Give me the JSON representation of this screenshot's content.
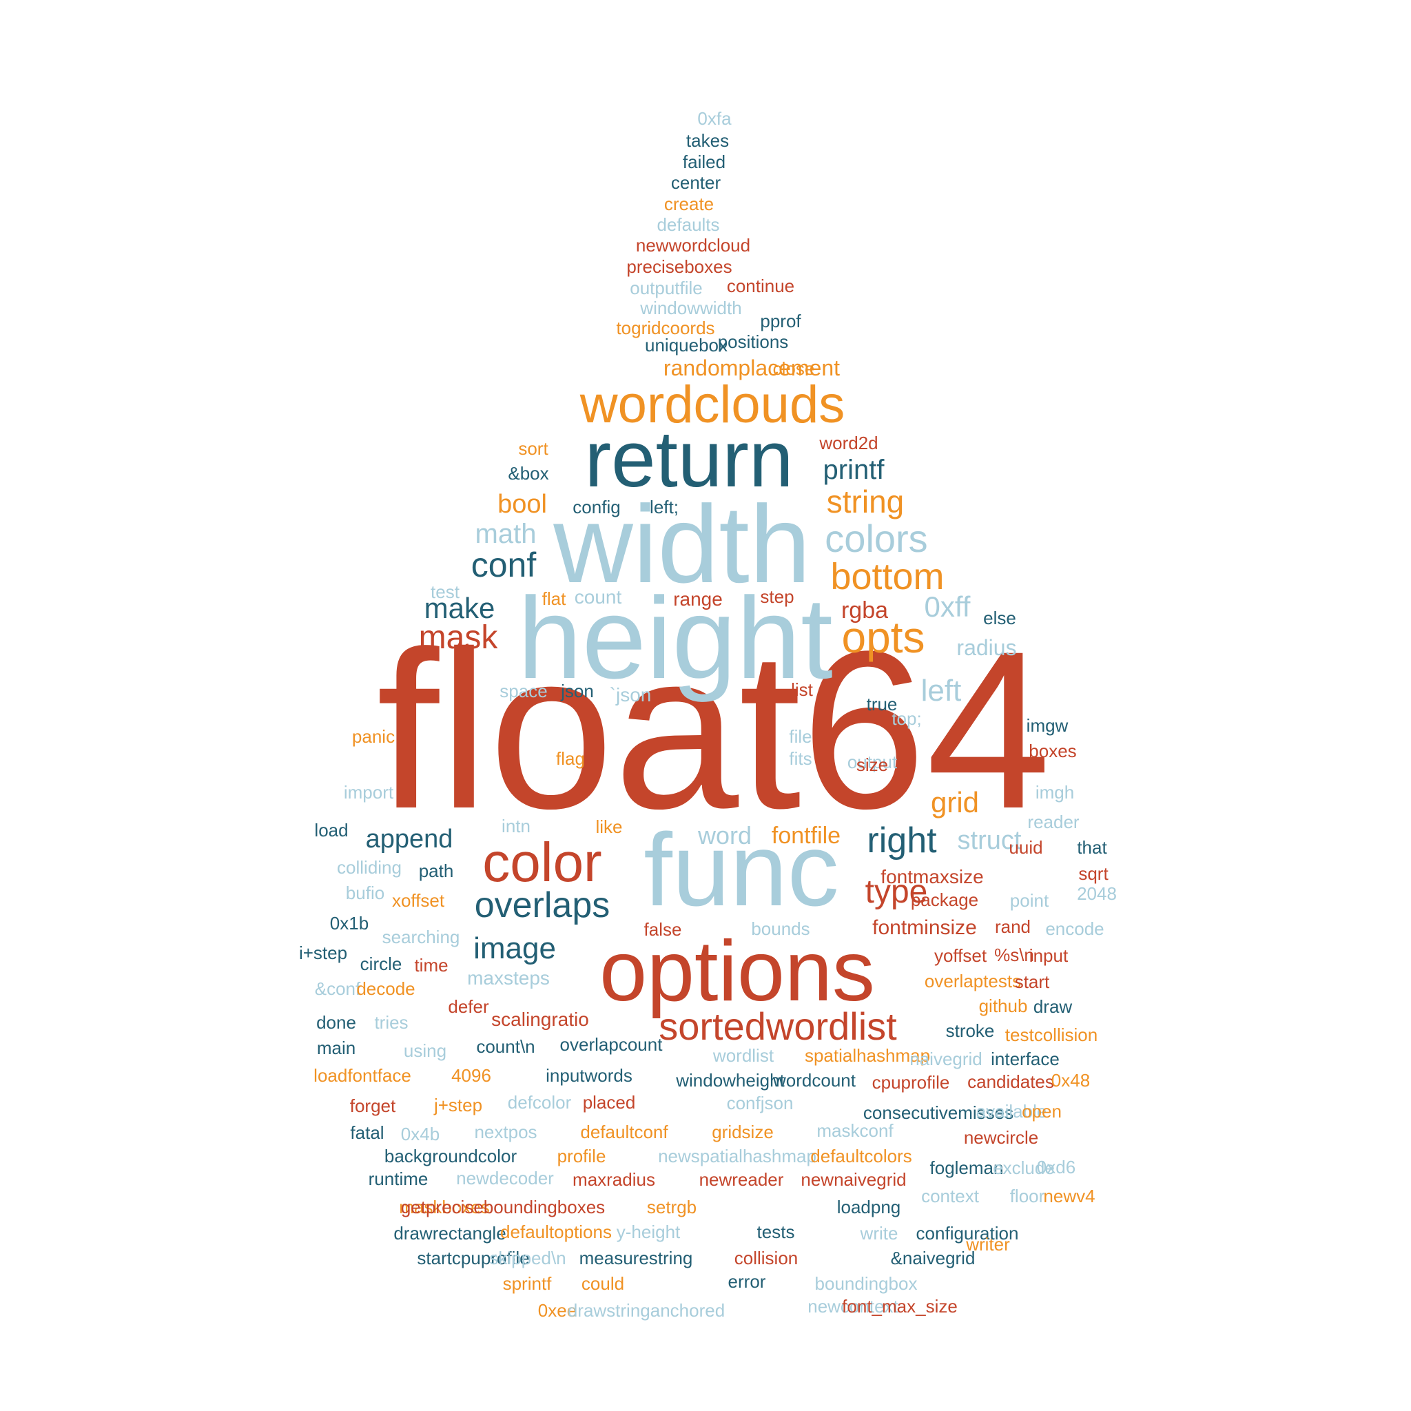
{
  "palette": {
    "red": "#c4452b",
    "orange": "#f09224",
    "dark_teal": "#235f74",
    "light_blue": "#a8cddb"
  },
  "words": [
    {
      "text": "float64",
      "color": "red"
    },
    {
      "text": "height",
      "color": "light_blue"
    },
    {
      "text": "width",
      "color": "light_blue"
    },
    {
      "text": "func",
      "color": "light_blue"
    },
    {
      "text": "return",
      "color": "dark_teal"
    },
    {
      "text": "options",
      "color": "red"
    },
    {
      "text": "wordclouds",
      "color": "orange"
    },
    {
      "text": "color",
      "color": "red"
    },
    {
      "text": "opts",
      "color": "orange"
    },
    {
      "text": "sortedwordlist",
      "color": "red"
    },
    {
      "text": "overlaps",
      "color": "dark_teal"
    },
    {
      "text": "colors",
      "color": "light_blue"
    },
    {
      "text": "bottom",
      "color": "orange"
    },
    {
      "text": "right",
      "color": "dark_teal"
    },
    {
      "text": "conf",
      "color": "dark_teal"
    },
    {
      "text": "mask",
      "color": "red"
    },
    {
      "text": "string",
      "color": "orange"
    },
    {
      "text": "make",
      "color": "dark_teal"
    },
    {
      "text": "image",
      "color": "dark_teal"
    },
    {
      "text": "type",
      "color": "red"
    },
    {
      "text": "math",
      "color": "light_blue"
    },
    {
      "text": "left",
      "color": "light_blue"
    },
    {
      "text": "0xff",
      "color": "light_blue"
    },
    {
      "text": "printf",
      "color": "dark_teal"
    },
    {
      "text": "bool",
      "color": "orange"
    },
    {
      "text": "append",
      "color": "dark_teal"
    },
    {
      "text": "struct",
      "color": "light_blue"
    },
    {
      "text": "grid",
      "color": "orange"
    },
    {
      "text": "rgba",
      "color": "red"
    },
    {
      "text": "word",
      "color": "light_blue"
    },
    {
      "text": "fontfile",
      "color": "orange"
    },
    {
      "text": "fontminsize",
      "color": "red"
    },
    {
      "text": "randomplacement",
      "color": "orange"
    },
    {
      "text": "radius",
      "color": "light_blue"
    },
    {
      "text": "scalingratio",
      "color": "red"
    },
    {
      "text": "fontmaxsize",
      "color": "red"
    },
    {
      "text": "maxsteps",
      "color": "light_blue"
    },
    {
      "text": "`json",
      "color": "light_blue"
    },
    {
      "text": "count",
      "color": "light_blue"
    },
    {
      "text": "range",
      "color": "red"
    },
    {
      "text": "0xfa",
      "color": "light_blue"
    },
    {
      "text": "takes",
      "color": "dark_teal"
    },
    {
      "text": "failed",
      "color": "dark_teal"
    },
    {
      "text": "center",
      "color": "dark_teal"
    },
    {
      "text": "create",
      "color": "orange"
    },
    {
      "text": "defaults",
      "color": "light_blue"
    },
    {
      "text": "newwordcloud",
      "color": "red"
    },
    {
      "text": "preciseboxes",
      "color": "red"
    },
    {
      "text": "outputfile",
      "color": "light_blue"
    },
    {
      "text": "continue",
      "color": "red"
    },
    {
      "text": "windowwidth",
      "color": "light_blue"
    },
    {
      "text": "togridcoords",
      "color": "orange"
    },
    {
      "text": "pprof",
      "color": "dark_teal"
    },
    {
      "text": "uniquebox",
      "color": "dark_teal"
    },
    {
      "text": "positions",
      "color": "dark_teal"
    },
    {
      "text": "close",
      "color": "orange"
    },
    {
      "text": "sort",
      "color": "orange"
    },
    {
      "text": "word2d",
      "color": "red"
    },
    {
      "text": "&box",
      "color": "dark_teal"
    },
    {
      "text": "config",
      "color": "dark_teal"
    },
    {
      "text": "left;",
      "color": "dark_teal"
    },
    {
      "text": "test",
      "color": "light_blue"
    },
    {
      "text": "flat",
      "color": "orange"
    },
    {
      "text": "step",
      "color": "red"
    },
    {
      "text": "else",
      "color": "dark_teal"
    },
    {
      "text": "space",
      "color": "light_blue"
    },
    {
      "text": "json",
      "color": "dark_teal"
    },
    {
      "text": "list",
      "color": "red"
    },
    {
      "text": "true",
      "color": "dark_teal"
    },
    {
      "text": "top;",
      "color": "light_blue"
    },
    {
      "text": "panic",
      "color": "orange"
    },
    {
      "text": "file",
      "color": "light_blue"
    },
    {
      "text": "imgw",
      "color": "dark_teal"
    },
    {
      "text": "output",
      "color": "light_blue"
    },
    {
      "text": "flag",
      "color": "orange"
    },
    {
      "text": "fits",
      "color": "light_blue"
    },
    {
      "text": "size",
      "color": "red"
    },
    {
      "text": "boxes",
      "color": "red"
    },
    {
      "text": "import",
      "color": "light_blue"
    },
    {
      "text": "imgh",
      "color": "light_blue"
    },
    {
      "text": "load",
      "color": "dark_teal"
    },
    {
      "text": "intn",
      "color": "light_blue"
    },
    {
      "text": "like",
      "color": "orange"
    },
    {
      "text": "reader",
      "color": "light_blue"
    },
    {
      "text": "colliding",
      "color": "light_blue"
    },
    {
      "text": "path",
      "color": "dark_teal"
    },
    {
      "text": "uuid",
      "color": "red"
    },
    {
      "text": "that",
      "color": "dark_teal"
    },
    {
      "text": "bufio",
      "color": "light_blue"
    },
    {
      "text": "xoffset",
      "color": "orange"
    },
    {
      "text": "sqrt",
      "color": "red"
    },
    {
      "text": "package",
      "color": "red"
    },
    {
      "text": "point",
      "color": "light_blue"
    },
    {
      "text": "2048",
      "color": "light_blue"
    },
    {
      "text": "0x1b",
      "color": "dark_teal"
    },
    {
      "text": "searching",
      "color": "light_blue"
    },
    {
      "text": "false",
      "color": "red"
    },
    {
      "text": "bounds",
      "color": "light_blue"
    },
    {
      "text": "rand",
      "color": "red"
    },
    {
      "text": "encode",
      "color": "light_blue"
    },
    {
      "text": "i+step",
      "color": "dark_teal"
    },
    {
      "text": "circle",
      "color": "dark_teal"
    },
    {
      "text": "time",
      "color": "red"
    },
    {
      "text": "yoffset",
      "color": "red"
    },
    {
      "text": "%s\\n",
      "color": "red"
    },
    {
      "text": "input",
      "color": "red"
    },
    {
      "text": "&conf",
      "color": "light_blue"
    },
    {
      "text": "decode",
      "color": "orange"
    },
    {
      "text": "overlaptests",
      "color": "orange"
    },
    {
      "text": "start",
      "color": "red"
    },
    {
      "text": "defer",
      "color": "red"
    },
    {
      "text": "github",
      "color": "orange"
    },
    {
      "text": "draw",
      "color": "dark_teal"
    },
    {
      "text": "done",
      "color": "dark_teal"
    },
    {
      "text": "tries",
      "color": "light_blue"
    },
    {
      "text": "stroke",
      "color": "dark_teal"
    },
    {
      "text": "testcollision",
      "color": "orange"
    },
    {
      "text": "main",
      "color": "dark_teal"
    },
    {
      "text": "using",
      "color": "light_blue"
    },
    {
      "text": "count\\n",
      "color": "dark_teal"
    },
    {
      "text": "overlapcount",
      "color": "dark_teal"
    },
    {
      "text": "wordlist",
      "color": "light_blue"
    },
    {
      "text": "spatialhashmap",
      "color": "orange"
    },
    {
      "text": "naivegrid",
      "color": "light_blue"
    },
    {
      "text": "interface",
      "color": "dark_teal"
    },
    {
      "text": "loadfontface",
      "color": "orange"
    },
    {
      "text": "4096",
      "color": "orange"
    },
    {
      "text": "inputwords",
      "color": "dark_teal"
    },
    {
      "text": "windowheight",
      "color": "dark_teal"
    },
    {
      "text": "wordcount",
      "color": "dark_teal"
    },
    {
      "text": "cpuprofile",
      "color": "red"
    },
    {
      "text": "candidates",
      "color": "red"
    },
    {
      "text": "0x48",
      "color": "orange"
    },
    {
      "text": "forget",
      "color": "red"
    },
    {
      "text": "j+step",
      "color": "orange"
    },
    {
      "text": "defcolor",
      "color": "light_blue"
    },
    {
      "text": "placed",
      "color": "red"
    },
    {
      "text": "confjson",
      "color": "light_blue"
    },
    {
      "text": "consecutivemisses",
      "color": "dark_teal"
    },
    {
      "text": "available",
      "color": "light_blue"
    },
    {
      "text": "open",
      "color": "orange"
    },
    {
      "text": "fatal",
      "color": "dark_teal"
    },
    {
      "text": "0x4b",
      "color": "light_blue"
    },
    {
      "text": "nextpos",
      "color": "light_blue"
    },
    {
      "text": "defaultconf",
      "color": "orange"
    },
    {
      "text": "gridsize",
      "color": "orange"
    },
    {
      "text": "maskconf",
      "color": "light_blue"
    },
    {
      "text": "newcircle",
      "color": "red"
    },
    {
      "text": "backgroundcolor",
      "color": "dark_teal"
    },
    {
      "text": "profile",
      "color": "orange"
    },
    {
      "text": "newspatialhashmap",
      "color": "light_blue"
    },
    {
      "text": "defaultcolors",
      "color": "orange"
    },
    {
      "text": "fogleman",
      "color": "dark_teal"
    },
    {
      "text": "exclude",
      "color": "light_blue"
    },
    {
      "text": "0xd6",
      "color": "light_blue"
    },
    {
      "text": "runtime",
      "color": "dark_teal"
    },
    {
      "text": "newdecoder",
      "color": "light_blue"
    },
    {
      "text": "maxradius",
      "color": "red"
    },
    {
      "text": "newreader",
      "color": "red"
    },
    {
      "text": "newnaivegrid",
      "color": "red"
    },
    {
      "text": "context",
      "color": "light_blue"
    },
    {
      "text": "floor",
      "color": "light_blue"
    },
    {
      "text": "newv4",
      "color": "orange"
    },
    {
      "text": "maskboxes",
      "color": "orange"
    },
    {
      "text": "getpreciseboundingboxes",
      "color": "red"
    },
    {
      "text": "setrgb",
      "color": "orange"
    },
    {
      "text": "loadpng",
      "color": "dark_teal"
    },
    {
      "text": "configuration",
      "color": "dark_teal"
    },
    {
      "text": "drawrectangle",
      "color": "dark_teal"
    },
    {
      "text": "defaultoptions",
      "color": "orange"
    },
    {
      "text": "y-height",
      "color": "light_blue"
    },
    {
      "text": "tests",
      "color": "dark_teal"
    },
    {
      "text": "write",
      "color": "light_blue"
    },
    {
      "text": "writer",
      "color": "orange"
    },
    {
      "text": "startcpuprofile",
      "color": "dark_teal"
    },
    {
      "text": "skipped\\n",
      "color": "light_blue"
    },
    {
      "text": "measurestring",
      "color": "dark_teal"
    },
    {
      "text": "collision",
      "color": "red"
    },
    {
      "text": "&naivegrid",
      "color": "dark_teal"
    },
    {
      "text": "boundingbox",
      "color": "light_blue"
    },
    {
      "text": "sprintf",
      "color": "orange"
    },
    {
      "text": "could",
      "color": "orange"
    },
    {
      "text": "error",
      "color": "dark_teal"
    },
    {
      "text": "newcontext",
      "color": "light_blue"
    },
    {
      "text": "font_max_size",
      "color": "red"
    },
    {
      "text": "0xee",
      "color": "orange"
    },
    {
      "text": "drawstringanchored",
      "color": "light_blue"
    }
  ]
}
